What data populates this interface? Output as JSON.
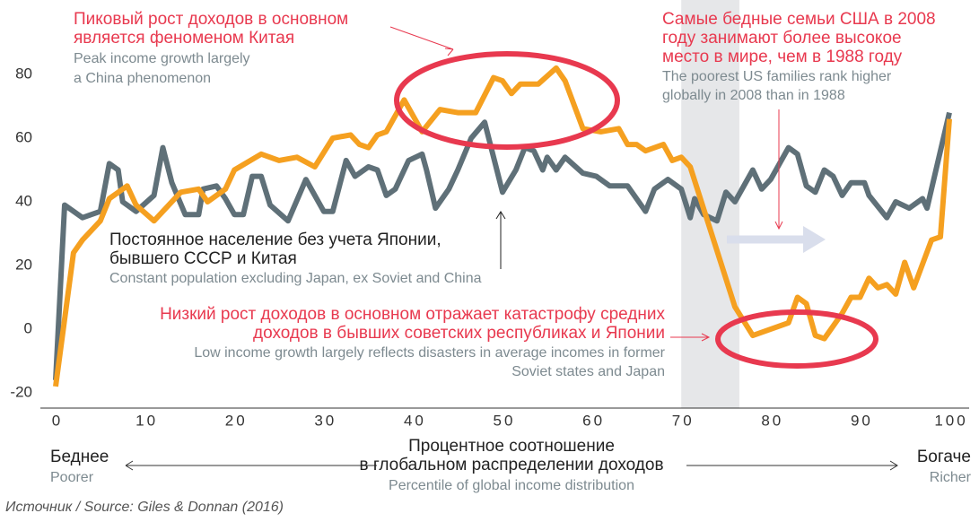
{
  "chart_data": {
    "type": "line",
    "xlim": [
      0,
      100
    ],
    "ylim": [
      -20,
      80
    ],
    "xticks": [
      0,
      10,
      20,
      30,
      40,
      50,
      60,
      70,
      80,
      90,
      100
    ],
    "yticks": [
      -20,
      0,
      20,
      40,
      60,
      80
    ],
    "highlight_band": [
      70,
      76.5
    ],
    "series": [
      {
        "color": "#5f7078",
        "x": [
          0,
          1,
          3,
          5,
          6,
          7,
          7.5,
          9,
          11,
          12,
          13,
          14.5,
          16,
          16.5,
          18,
          19,
          20,
          21,
          22,
          23,
          24,
          26,
          28,
          30,
          31,
          32.5,
          33.5,
          35,
          36,
          37,
          38,
          39.5,
          41,
          41.5,
          42.5,
          44,
          45,
          46.5,
          48,
          50,
          51.5,
          52.5,
          53.5,
          54.5,
          55,
          56,
          57,
          59,
          60.5,
          62,
          64,
          66,
          67,
          68.5,
          70,
          71,
          71.5,
          72.5,
          74,
          75,
          76,
          78,
          79,
          80,
          82,
          83,
          84,
          85,
          86,
          87,
          88,
          89,
          90.5,
          91,
          93,
          94,
          95.5,
          97,
          97.5,
          100
        ],
        "values": [
          -16,
          39,
          35,
          37,
          52,
          50,
          40,
          37,
          42,
          57,
          46,
          36,
          36,
          44,
          45,
          41,
          36,
          36,
          48,
          48,
          39,
          34,
          47,
          37,
          37,
          53,
          48,
          51,
          50,
          42,
          44,
          53,
          55,
          50,
          38,
          44,
          50,
          60,
          65,
          43,
          50,
          57,
          56,
          50,
          54,
          50,
          54,
          49,
          48,
          45,
          45,
          37,
          44,
          47,
          44,
          35,
          41,
          36,
          34,
          43,
          40,
          50,
          44,
          47,
          57,
          55,
          45,
          43,
          50,
          48,
          42,
          46,
          46,
          42,
          35,
          40,
          38,
          41,
          38,
          68
        ]
      },
      {
        "color": "#f5a020",
        "x": [
          0,
          2,
          3,
          5,
          6,
          8,
          9,
          11,
          14,
          16,
          17,
          19,
          20,
          23,
          25,
          27,
          29,
          31,
          33,
          34,
          35,
          36,
          37,
          39,
          41,
          43,
          45,
          47,
          49,
          50,
          51,
          52,
          54,
          56,
          57,
          59,
          61,
          63,
          64,
          65,
          66,
          68,
          69,
          70,
          71,
          76,
          78,
          82,
          83,
          84,
          85,
          86,
          88,
          89,
          90,
          91,
          92,
          93,
          94,
          95,
          96,
          98,
          99,
          100
        ],
        "values": [
          -18,
          24,
          28,
          34,
          41,
          45,
          39,
          34,
          43,
          44,
          40,
          44,
          50,
          55,
          53,
          54,
          51,
          60,
          61,
          58,
          57,
          61,
          62,
          72,
          62,
          69,
          68,
          68,
          79,
          78,
          74,
          77,
          77,
          82,
          78,
          63,
          62,
          63,
          58,
          58,
          56,
          58,
          53,
          54,
          51,
          7,
          -2,
          2,
          10,
          8,
          -2,
          -3,
          5,
          10,
          10,
          16,
          13,
          14,
          11,
          21,
          13,
          28,
          29,
          66
        ]
      }
    ],
    "annotations": [
      {
        "lines": [
          "Пиковый рост доходов в основном",
          "является феноменом Китая"
        ],
        "sublines": [
          "Peak income growth largely",
          "a China phenomenon"
        ]
      },
      {
        "lines": [
          "Самые бедные семьи США в 2008",
          "году занимают более высокое",
          "место в мире, чем в 1988 году"
        ],
        "sublines": [
          "The poorest US families rank higher",
          "globally in 2008 than in 1988"
        ]
      },
      {
        "lines": [
          "Постоянное население без учета Японии,",
          "бывшего СССР и Китая"
        ],
        "sublines": [
          "Constant population excluding Japan, ex Soviet and China"
        ]
      },
      {
        "lines": [
          "Низкий рост доходов в основном отражает катастрофу средних",
          "доходов в бывших советских республиках и Японии"
        ],
        "sublines": [
          "Low income growth largely reflects disasters in average incomes in former",
          "Soviet states and Japan"
        ]
      }
    ],
    "left_label": "Беднее",
    "left_sublabel": "Poorer",
    "right_label": "Богаче",
    "right_sublabel": "Richer",
    "xlabel": [
      "Процентное соотношение",
      "в глобальном распределении доходов"
    ],
    "xlabel_sub": "Percentile of global income distribution",
    "source": "Источник / Source: Giles & Donnan (2016)"
  }
}
